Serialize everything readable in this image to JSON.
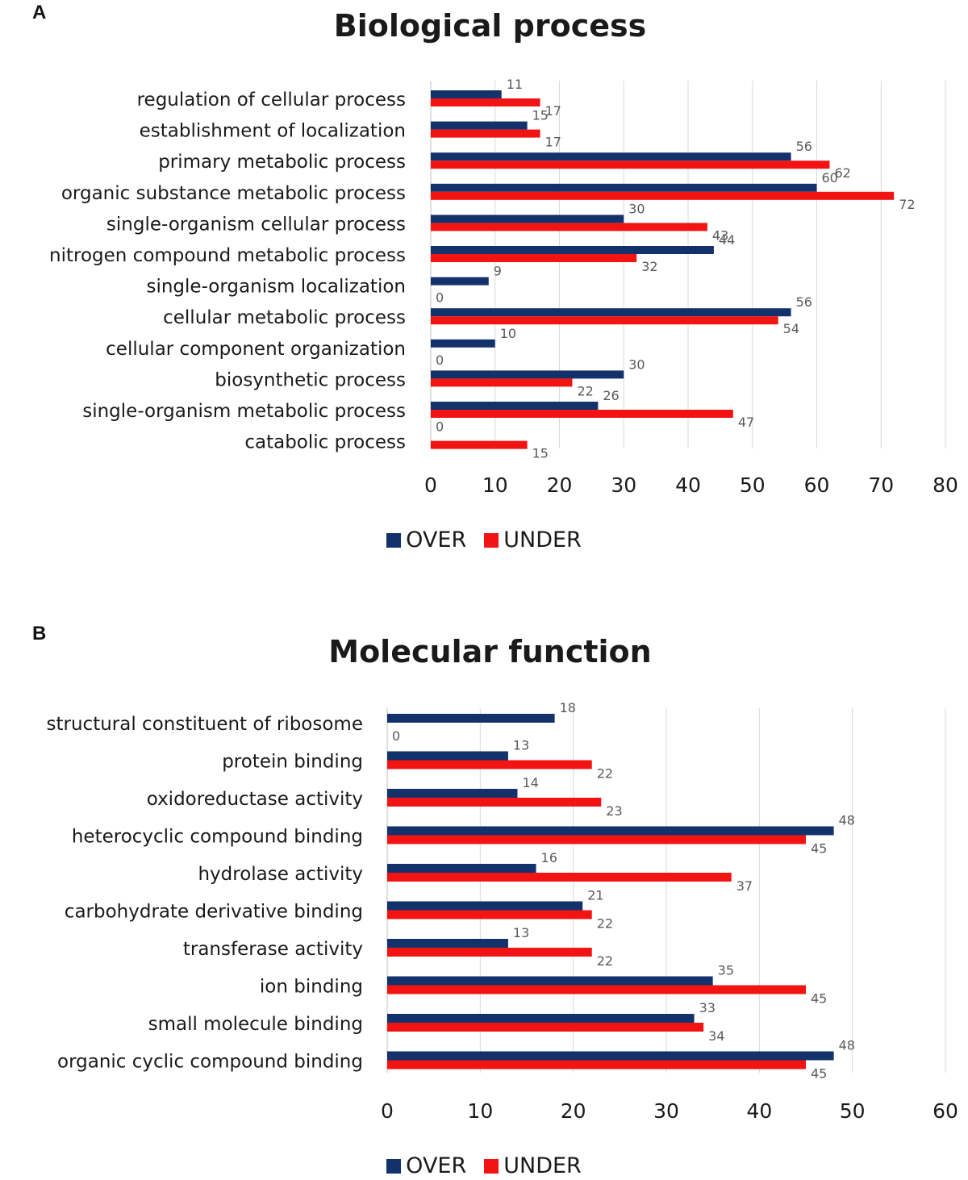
{
  "panels": [
    {
      "letter": "A",
      "chart_data": {
        "type": "bar",
        "orientation": "horizontal",
        "title": "Biological process",
        "categories": [
          "regulation of cellular process",
          "establishment of localization",
          "primary metabolic process",
          "organic substance metabolic process",
          "single-organism cellular process",
          "nitrogen compound metabolic process",
          "single-organism localization",
          "cellular metabolic process",
          "cellular component organization",
          "biosynthetic process",
          "single-organism metabolic process",
          "catabolic process"
        ],
        "series": [
          {
            "name": "OVER",
            "color": "#13316b",
            "values": [
              11,
              15,
              56,
              60,
              30,
              44,
              9,
              56,
              10,
              30,
              26,
              0
            ]
          },
          {
            "name": "UNDER",
            "color": "#f21313",
            "values": [
              17,
              17,
              62,
              72,
              43,
              32,
              0,
              54,
              0,
              22,
              47,
              15
            ]
          }
        ],
        "xlim": [
          0,
          80
        ],
        "xticks": [
          0,
          10,
          20,
          30,
          40,
          50,
          60,
          70,
          80
        ],
        "grid": true,
        "legend": "bottom"
      }
    },
    {
      "letter": "B",
      "chart_data": {
        "type": "bar",
        "orientation": "horizontal",
        "title": "Molecular function",
        "categories": [
          "structural constituent of ribosome",
          "protein binding",
          "oxidoreductase activity",
          "heterocyclic compound binding",
          "hydrolase activity",
          "carbohydrate derivative binding",
          "transferase activity",
          "ion binding",
          "small molecule binding",
          "organic cyclic compound binding"
        ],
        "series": [
          {
            "name": "OVER",
            "color": "#13316b",
            "values": [
              18,
              13,
              14,
              48,
              16,
              21,
              13,
              35,
              33,
              48
            ]
          },
          {
            "name": "UNDER",
            "color": "#f21313",
            "values": [
              0,
              22,
              23,
              45,
              37,
              22,
              22,
              45,
              34,
              45
            ]
          }
        ],
        "xlim": [
          0,
          60
        ],
        "xticks": [
          0,
          10,
          20,
          30,
          40,
          50,
          60
        ],
        "grid": true,
        "legend": "bottom"
      }
    }
  ]
}
